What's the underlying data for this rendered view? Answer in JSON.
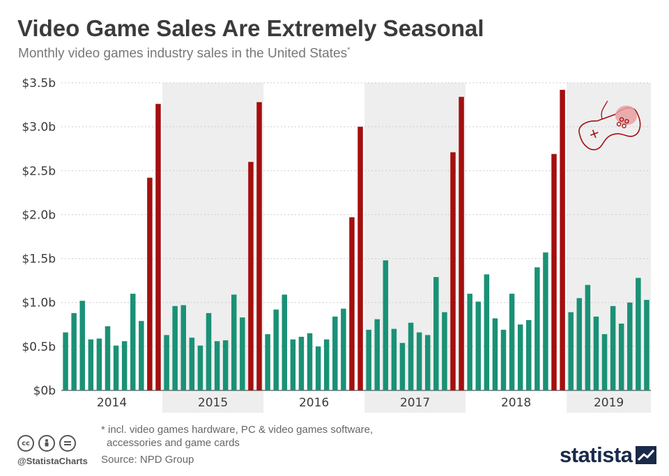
{
  "title": "Video Game Sales Are Extremely Seasonal",
  "subtitle": "Monthly video games industry sales in the United States",
  "subtitle_marker": "*",
  "footnote": {
    "line1": "* incl. video games hardware, PC & video games software,",
    "line2": "accessories and game cards"
  },
  "source": "Source: NPD Group",
  "handle": "@StatistaCharts",
  "brand": "statista",
  "license_icons": [
    "cc-icon",
    "by-icon",
    "nd-icon"
  ],
  "icon": "gamepad-icon",
  "colors": {
    "regular": "#1a9176",
    "holiday": "#a40f0f",
    "band": "#eeeeee",
    "text": "#3b3b3b",
    "grid": "#cccccc"
  },
  "chart_data": {
    "type": "bar",
    "ylim": [
      0,
      3.5
    ],
    "yticks": [
      {
        "value": 0,
        "label": "$0b"
      },
      {
        "value": 0.5,
        "label": "$0.5b"
      },
      {
        "value": 1.0,
        "label": "$1.0b"
      },
      {
        "value": 1.5,
        "label": "$1.5b"
      },
      {
        "value": 2.0,
        "label": "$2.0b"
      },
      {
        "value": 2.5,
        "label": "$2.5b"
      },
      {
        "value": 3.0,
        "label": "$3.0b"
      },
      {
        "value": 3.5,
        "label": "$3.5b"
      }
    ],
    "grid": "horizontal dotted",
    "shaded_years": [
      "2015",
      "2017",
      "2019"
    ],
    "highlight": "November and December bars in red",
    "years": [
      {
        "year": "2014",
        "values": [
          0.66,
          0.88,
          1.02,
          0.58,
          0.59,
          0.73,
          0.51,
          0.56,
          1.1,
          0.79,
          2.42,
          3.26
        ]
      },
      {
        "year": "2015",
        "values": [
          0.63,
          0.96,
          0.97,
          0.6,
          0.51,
          0.88,
          0.56,
          0.57,
          1.09,
          0.83,
          2.6,
          3.28
        ]
      },
      {
        "year": "2016",
        "values": [
          0.64,
          0.92,
          1.09,
          0.58,
          0.61,
          0.65,
          0.5,
          0.58,
          0.84,
          0.93,
          1.97,
          3.0
        ]
      },
      {
        "year": "2017",
        "values": [
          0.69,
          0.81,
          1.48,
          0.7,
          0.54,
          0.77,
          0.66,
          0.63,
          1.29,
          0.89,
          2.71,
          3.34
        ]
      },
      {
        "year": "2018",
        "values": [
          1.1,
          1.01,
          1.32,
          0.82,
          0.69,
          1.1,
          0.75,
          0.8,
          1.4,
          1.57,
          2.69,
          3.42
        ]
      },
      {
        "year": "2019",
        "values": [
          0.89,
          1.05,
          1.2,
          0.84,
          0.64,
          0.96,
          0.76,
          1.0,
          1.28,
          1.03
        ]
      }
    ]
  }
}
